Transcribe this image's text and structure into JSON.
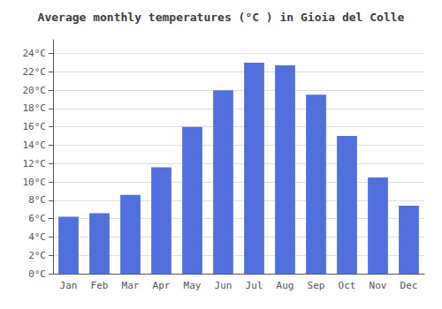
{
  "chart_data": {
    "type": "bar",
    "title": "Average monthly temperatures (°C ) in Gioia del Colle",
    "categories": [
      "Jan",
      "Feb",
      "Mar",
      "Apr",
      "May",
      "Jun",
      "Jul",
      "Aug",
      "Sep",
      "Oct",
      "Nov",
      "Dec"
    ],
    "values": [
      6.2,
      6.6,
      8.6,
      11.6,
      16.0,
      20.0,
      23.0,
      22.7,
      19.5,
      15.0,
      10.5,
      7.4
    ],
    "ylim": [
      0,
      25.5
    ],
    "yticks": [
      {
        "value": 0,
        "label": "0°C"
      },
      {
        "value": 2,
        "label": "2°C"
      },
      {
        "value": 4,
        "label": "4°C"
      },
      {
        "value": 6,
        "label": "6°C"
      },
      {
        "value": 8,
        "label": "8°C"
      },
      {
        "value": 10,
        "label": "10°C"
      },
      {
        "value": 12,
        "label": "12°C"
      },
      {
        "value": 14,
        "label": "14°C"
      },
      {
        "value": 16,
        "label": "16°C"
      },
      {
        "value": 18,
        "label": "18°C"
      },
      {
        "value": 20,
        "label": "20°C"
      },
      {
        "value": 22,
        "label": "22°C"
      },
      {
        "value": 24,
        "label": "24°C"
      }
    ],
    "grid": true
  }
}
